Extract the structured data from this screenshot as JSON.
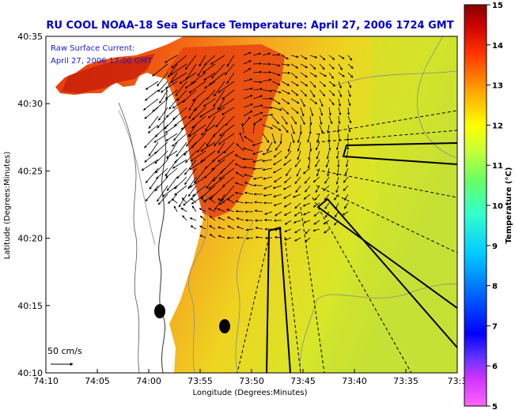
{
  "title": "RU COOL  NOAA-18  Sea Surface Temperature:  April 27, 2006 1724 GMT",
  "annotation": {
    "line1": "Raw Surface Current:",
    "line2": "April 27, 2006 17:00 GMT"
  },
  "scale_label": "50 cm/s",
  "axes": {
    "xlabel": "Longitude (Degrees:Minutes)",
    "ylabel": "Latitude (Degrees:Minutes)",
    "xticks": [
      "74:10",
      "74:05",
      "74:00",
      "73:55",
      "73:50",
      "73:45",
      "73:40",
      "73:35",
      "73:3"
    ],
    "yticks": [
      "40:35",
      "40:30",
      "40:25",
      "40:20",
      "40:15",
      "40:10"
    ]
  },
  "colorbar": {
    "label": "Temperature (°C)",
    "ticks": [
      "15",
      "14",
      "13",
      "12",
      "11",
      "10",
      "9",
      "8",
      "7",
      "6",
      "5"
    ],
    "colors": [
      "#ff66ff",
      "#cc33ff",
      "#3333ff",
      "#0066ff",
      "#00ccff",
      "#33ff99",
      "#99ff33",
      "#ffff00",
      "#ffaa00",
      "#ff4400",
      "#cc0000",
      "#880000"
    ]
  },
  "colors": {
    "title": "#0000cc",
    "land": "#ffffff",
    "warm_water": "#e84a10",
    "cool_water": "#c8e030"
  }
}
